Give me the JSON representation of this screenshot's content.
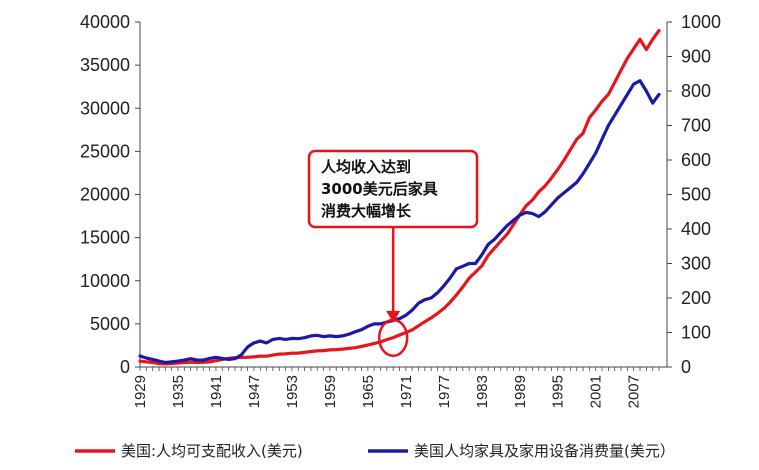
{
  "chart_data": {
    "type": "line",
    "x": [
      1929,
      1930,
      1931,
      1932,
      1933,
      1934,
      1935,
      1936,
      1937,
      1938,
      1939,
      1940,
      1941,
      1942,
      1943,
      1944,
      1945,
      1946,
      1947,
      1948,
      1949,
      1950,
      1951,
      1952,
      1953,
      1954,
      1955,
      1956,
      1957,
      1958,
      1959,
      1960,
      1961,
      1962,
      1963,
      1964,
      1965,
      1966,
      1967,
      1968,
      1969,
      1970,
      1971,
      1972,
      1973,
      1974,
      1975,
      1976,
      1977,
      1978,
      1979,
      1980,
      1981,
      1982,
      1983,
      1984,
      1985,
      1986,
      1987,
      1988,
      1989,
      1990,
      1991,
      1992,
      1993,
      1994,
      1995,
      1996,
      1997,
      1998,
      1999,
      2000,
      2001,
      2002,
      2003,
      2004,
      2005,
      2006,
      2007,
      2008,
      2009,
      2010,
      2011
    ],
    "x_tick_labels": [
      "1929",
      "1935",
      "1941",
      "1947",
      "1953",
      "1959",
      "1965",
      "1971",
      "1977",
      "1983",
      "1989",
      "1995",
      "2001",
      "2007"
    ],
    "x_ticks": [
      1929,
      1935,
      1941,
      1947,
      1953,
      1959,
      1965,
      1971,
      1977,
      1983,
      1989,
      1995,
      2001,
      2007
    ],
    "y_left": {
      "ylim": [
        0,
        40000
      ],
      "ticks": [
        0,
        5000,
        10000,
        15000,
        20000,
        25000,
        30000,
        35000,
        40000
      ]
    },
    "y_right": {
      "ylim": [
        0,
        1000
      ],
      "ticks": [
        0,
        100,
        200,
        300,
        400,
        500,
        600,
        700,
        800,
        900,
        1000
      ]
    },
    "series": [
      {
        "name": "美国:人均可支配收入(美元)",
        "axis": "left",
        "color": "#e8141c",
        "values": [
          680,
          600,
          520,
          400,
          360,
          410,
          460,
          520,
          560,
          520,
          550,
          590,
          730,
          880,
          1000,
          1080,
          1110,
          1130,
          1170,
          1260,
          1250,
          1380,
          1490,
          1530,
          1600,
          1610,
          1700,
          1800,
          1870,
          1900,
          1980,
          2020,
          2070,
          2160,
          2240,
          2390,
          2550,
          2740,
          2910,
          3180,
          3410,
          3710,
          4000,
          4300,
          4780,
          5250,
          5690,
          6210,
          6780,
          7500,
          8360,
          9270,
          10300,
          11000,
          11720,
          12940,
          13760,
          14600,
          15400,
          16500,
          17650,
          18700,
          19350,
          20300,
          21000,
          21900,
          22900,
          24000,
          25200,
          26400,
          27100,
          28900,
          29800,
          30800,
          31600,
          33000,
          34400,
          35800,
          36900,
          38000,
          36800,
          38000,
          39000
        ]
      },
      {
        "name": "美国人均家具及家用设备消费量(美元）",
        "axis": "right",
        "color": "#1a1aa8",
        "values": [
          32,
          26,
          22,
          17,
          13,
          15,
          17,
          20,
          24,
          20,
          20,
          25,
          28,
          25,
          22,
          24,
          35,
          58,
          70,
          75,
          70,
          80,
          83,
          80,
          83,
          82,
          85,
          90,
          92,
          88,
          90,
          88,
          90,
          95,
          102,
          108,
          118,
          125,
          125,
          130,
          135,
          140,
          150,
          165,
          185,
          195,
          200,
          215,
          235,
          258,
          285,
          292,
          300,
          300,
          325,
          355,
          370,
          390,
          410,
          425,
          440,
          448,
          445,
          436,
          450,
          470,
          490,
          505,
          520,
          535,
          560,
          590,
          620,
          660,
          700,
          730,
          760,
          790,
          820,
          830,
          800,
          765,
          790
        ]
      }
    ],
    "annotation": {
      "lines": [
        "人均收入达到",
        "3000美元后家具",
        "消费大幅增长"
      ],
      "target_year": 1969,
      "target_value_left": 3500
    },
    "legend_placement": "bottom",
    "grid": false,
    "xlabel": "",
    "ylabel": ""
  }
}
